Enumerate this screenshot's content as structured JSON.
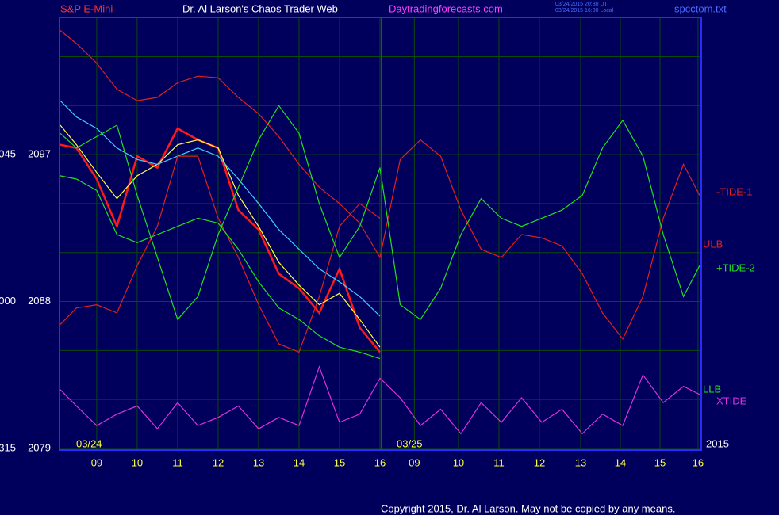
{
  "header": {
    "symbol": "S&P E-Mini",
    "site_title": "Dr. Al Larson's Chaos Trader Web",
    "url": "Daytradingforecasts.com",
    "timestamp_ut": "03/24/2015 20:30 UT",
    "timestamp_local": "03/24/2015 16:30 Local",
    "file": "spcctom.txt"
  },
  "footer": {
    "copyright": "Copyright 2015, Dr. Al Larson. May not be copied by any means."
  },
  "chart_data": {
    "type": "line",
    "x": [
      8.1,
      8.5,
      9,
      9.5,
      10,
      10.5,
      11,
      11.5,
      12,
      12.5,
      13,
      13.5,
      14,
      14.5,
      15,
      15.5,
      16,
      16.5,
      17,
      17.5,
      18,
      18.5,
      19,
      19.5,
      20,
      20.5,
      21,
      21.5,
      22,
      22.5,
      23,
      23.5,
      23.9
    ],
    "xlim": [
      8.08,
      23.94
    ],
    "xticks": [
      {
        "value": 9,
        "label": "09"
      },
      {
        "value": 10,
        "label": "10"
      },
      11,
      12,
      13,
      14,
      15,
      16,
      {
        "value": 16.85,
        "label": "09"
      },
      {
        "value": 17.94,
        "label": "10"
      },
      {
        "value": 18.94,
        "label": "11"
      },
      {
        "value": 19.94,
        "label": "12"
      },
      {
        "value": 20.96,
        "label": "13"
      },
      {
        "value": 21.94,
        "label": "14"
      },
      {
        "value": 22.92,
        "label": "15"
      },
      {
        "value": 23.86,
        "label": "16"
      }
    ],
    "ylim": [
      2078.9,
      2105.4
    ],
    "yticks": [
      2079,
      2088,
      2097
    ],
    "minor_yticks": [
      2082,
      2085,
      2091,
      2094,
      2100,
      2103
    ],
    "y_time_labels": [
      "315",
      "000",
      "045"
    ],
    "date_labels": [
      "03/24",
      "03/25",
      "2015"
    ],
    "grid": true,
    "series": [
      {
        "color": "#ff1a1a",
        "values": [
          2097.6,
          2097.4,
          2095.5,
          2092.6,
          2096.9,
          2096.2,
          2098.6,
          2097.9,
          2097.4,
          2093.6,
          2092.4,
          2089.7,
          2088.8,
          2087.3,
          2090.0,
          2086.4,
          2084.9,
          null,
          null,
          null,
          null,
          null,
          null,
          null,
          null,
          null,
          null,
          null,
          null,
          null,
          null,
          null,
          null
        ]
      },
      {
        "color": "#ffff40",
        "values": [
          2098.8,
          2097.6,
          2095.9,
          2094.3,
          2095.7,
          2096.4,
          2097.6,
          2097.9,
          2097.4,
          2094.5,
          2092.6,
          2090.4,
          2089.0,
          2087.8,
          2088.5,
          2086.9,
          2085.2,
          null,
          null,
          null,
          null,
          null,
          null,
          null,
          null,
          null,
          null,
          null,
          null,
          null,
          null,
          null,
          null
        ]
      },
      {
        "color": "#40d0ff",
        "values": [
          2100.3,
          2099.3,
          2098.6,
          2097.4,
          2096.7,
          2096.4,
          2096.9,
          2097.4,
          2096.9,
          2095.5,
          2094.0,
          2092.4,
          2091.2,
          2090.0,
          2089.2,
          2088.3,
          2087.1,
          null,
          null,
          null,
          null,
          null,
          null,
          null,
          null,
          null,
          null,
          null,
          null,
          null,
          null,
          null,
          null
        ]
      },
      {
        "name": "-TIDE-1",
        "color": "#e02020",
        "values": [
          2104.6,
          2103.8,
          2102.6,
          2101.0,
          2100.3,
          2100.5,
          2101.4,
          2101.8,
          2101.7,
          2100.5,
          2099.5,
          2098.1,
          2096.4,
          2095.0,
          2094.0,
          2092.8,
          2090.7,
          2096.7,
          2097.9,
          2096.9,
          2093.6,
          2091.2,
          2090.7,
          2092.1,
          2091.9,
          2091.4,
          2089.7,
          2087.3,
          2085.7,
          2088.3,
          2093.1,
          2096.4,
          2094.5
        ]
      },
      {
        "name": "ULB",
        "color": "#e02020",
        "values": [
          2086.6,
          2087.6,
          2087.8,
          2087.3,
          2090.2,
          2092.6,
          2096.9,
          2096.9,
          2093.1,
          2090.7,
          2087.8,
          2085.4,
          2084.9,
          2088.3,
          2092.6,
          2094.0,
          2093.1,
          null,
          null,
          null,
          null,
          null,
          null,
          null,
          null,
          null,
          null,
          null,
          null,
          null,
          null,
          null,
          null
        ]
      },
      {
        "name": "+TIDE-2",
        "color": "#20e020",
        "values": [
          2098.3,
          2097.4,
          2098.1,
          2098.8,
          2094.5,
          2090.7,
          2086.9,
          2088.3,
          2092.1,
          2095.0,
          2097.9,
          2100.0,
          2098.3,
          2094.0,
          2090.7,
          2092.6,
          2096.2,
          2087.8,
          2086.9,
          2088.8,
          2092.1,
          2094.3,
          2093.1,
          2092.6,
          2093.1,
          2093.6,
          2094.5,
          2097.4,
          2099.1,
          2096.9,
          2092.1,
          2088.3,
          2090.2
        ]
      },
      {
        "name": "LLB",
        "color": "#20e020",
        "values": [
          2095.7,
          2095.5,
          2094.8,
          2092.1,
          2091.6,
          2092.1,
          2092.6,
          2093.1,
          2092.8,
          2091.2,
          2089.2,
          2087.6,
          2086.9,
          2085.9,
          2085.2,
          2084.9,
          2084.5,
          null,
          null,
          null,
          null,
          null,
          null,
          null,
          null,
          null,
          null,
          null,
          null,
          null,
          null,
          null,
          null
        ]
      },
      {
        "name": "XTIDE",
        "color": "#e030e0",
        "values": [
          2082.6,
          2081.6,
          2080.4,
          2081.1,
          2081.6,
          2080.2,
          2081.8,
          2080.4,
          2080.9,
          2081.6,
          2080.2,
          2080.9,
          2080.4,
          2084.0,
          2080.6,
          2081.1,
          2083.3,
          2082.1,
          2080.4,
          2081.4,
          2079.9,
          2081.8,
          2080.6,
          2082.1,
          2080.6,
          2081.4,
          2079.9,
          2081.1,
          2080.4,
          2083.5,
          2081.8,
          2082.8,
          2082.3
        ]
      }
    ]
  }
}
